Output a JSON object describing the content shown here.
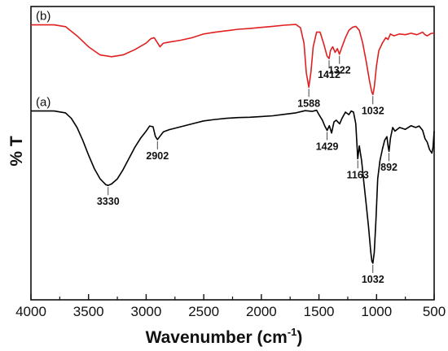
{
  "chart_data": {
    "type": "line",
    "xlabel": "Wavenumber (cm",
    "xlabel_sup": "-1",
    "xlabel_close": ")",
    "ylabel": "% T",
    "xlim": [
      4000,
      500
    ],
    "x_reversed": true,
    "x_ticks": [
      4000,
      3500,
      3000,
      2500,
      2000,
      1500,
      1000,
      500
    ],
    "y_ticks_shown": false,
    "grid": false,
    "series": [
      {
        "name": "(b)",
        "color": "#e02020",
        "points": [
          [
            4000,
            95.0
          ],
          [
            3800,
            95.0
          ],
          [
            3700,
            94.5
          ],
          [
            3600,
            92.0
          ],
          [
            3500,
            89.0
          ],
          [
            3400,
            86.8
          ],
          [
            3300,
            86.3
          ],
          [
            3200,
            86.8
          ],
          [
            3100,
            88.2
          ],
          [
            3000,
            90.0
          ],
          [
            2960,
            91.2
          ],
          [
            2930,
            91.5
          ],
          [
            2900,
            90.0
          ],
          [
            2880,
            89.0
          ],
          [
            2850,
            90.0
          ],
          [
            2800,
            90.3
          ],
          [
            2700,
            90.8
          ],
          [
            2600,
            91.5
          ],
          [
            2500,
            92.5
          ],
          [
            2400,
            93.0
          ],
          [
            2300,
            93.4
          ],
          [
            2200,
            93.8
          ],
          [
            2100,
            94.0
          ],
          [
            2000,
            94.3
          ],
          [
            1900,
            94.6
          ],
          [
            1800,
            94.9
          ],
          [
            1700,
            95.1
          ],
          [
            1660,
            94.2
          ],
          [
            1630,
            90.0
          ],
          [
            1610,
            82.0
          ],
          [
            1588,
            78.0
          ],
          [
            1570,
            82.0
          ],
          [
            1550,
            89.0
          ],
          [
            1520,
            93.0
          ],
          [
            1490,
            93.0
          ],
          [
            1460,
            90.0
          ],
          [
            1430,
            86.5
          ],
          [
            1412,
            85.8
          ],
          [
            1400,
            88.0
          ],
          [
            1380,
            89.0
          ],
          [
            1360,
            87.5
          ],
          [
            1340,
            88.5
          ],
          [
            1322,
            87.0
          ],
          [
            1300,
            89.0
          ],
          [
            1270,
            91.5
          ],
          [
            1240,
            93.5
          ],
          [
            1210,
            94.3
          ],
          [
            1180,
            94.6
          ],
          [
            1150,
            93.5
          ],
          [
            1120,
            90.0
          ],
          [
            1090,
            85.0
          ],
          [
            1060,
            79.5
          ],
          [
            1040,
            76.5
          ],
          [
            1032,
            76.0
          ],
          [
            1020,
            78.0
          ],
          [
            1000,
            84.0
          ],
          [
            980,
            88.0
          ],
          [
            950,
            90.0
          ],
          [
            920,
            91.5
          ],
          [
            900,
            91.0
          ],
          [
            880,
            92.5
          ],
          [
            850,
            92.0
          ],
          [
            800,
            92.5
          ],
          [
            750,
            92.3
          ],
          [
            700,
            92.7
          ],
          [
            650,
            92.3
          ],
          [
            600,
            93.0
          ],
          [
            580,
            92.3
          ],
          [
            560,
            92.0
          ],
          [
            530,
            92.6
          ],
          [
            500,
            92.8
          ]
        ]
      },
      {
        "name": "(a)",
        "color": "#000000",
        "points": [
          [
            4000,
            71.5
          ],
          [
            3800,
            71.5
          ],
          [
            3700,
            71.0
          ],
          [
            3650,
            69.5
          ],
          [
            3600,
            67.0
          ],
          [
            3550,
            63.5
          ],
          [
            3500,
            59.5
          ],
          [
            3450,
            55.8
          ],
          [
            3400,
            53.0
          ],
          [
            3350,
            51.4
          ],
          [
            3330,
            51.2
          ],
          [
            3300,
            51.6
          ],
          [
            3250,
            53.0
          ],
          [
            3200,
            55.5
          ],
          [
            3150,
            58.5
          ],
          [
            3100,
            61.5
          ],
          [
            3050,
            64.0
          ],
          [
            3000,
            66.0
          ],
          [
            2970,
            67.4
          ],
          [
            2940,
            67.2
          ],
          [
            2920,
            64.6
          ],
          [
            2902,
            63.7
          ],
          [
            2880,
            64.6
          ],
          [
            2850,
            65.8
          ],
          [
            2800,
            66.4
          ],
          [
            2700,
            67.2
          ],
          [
            2600,
            68.0
          ],
          [
            2500,
            68.8
          ],
          [
            2400,
            69.2
          ],
          [
            2300,
            69.5
          ],
          [
            2200,
            69.7
          ],
          [
            2100,
            69.8
          ],
          [
            2000,
            70.0
          ],
          [
            1900,
            70.2
          ],
          [
            1800,
            70.6
          ],
          [
            1700,
            71.0
          ],
          [
            1620,
            71.6
          ],
          [
            1560,
            71.4
          ],
          [
            1520,
            71.7
          ],
          [
            1500,
            70.5
          ],
          [
            1470,
            69.0
          ],
          [
            1450,
            67.5
          ],
          [
            1429,
            66.2
          ],
          [
            1410,
            67.5
          ],
          [
            1390,
            65.5
          ],
          [
            1370,
            68.5
          ],
          [
            1350,
            69.0
          ],
          [
            1320,
            68.0
          ],
          [
            1300,
            69.5
          ],
          [
            1270,
            71.2
          ],
          [
            1240,
            70.5
          ],
          [
            1220,
            71.5
          ],
          [
            1200,
            71.2
          ],
          [
            1180,
            68.0
          ],
          [
            1163,
            58.5
          ],
          [
            1150,
            62.0
          ],
          [
            1130,
            58.0
          ],
          [
            1110,
            52.0
          ],
          [
            1090,
            46.0
          ],
          [
            1070,
            40.0
          ],
          [
            1050,
            33.0
          ],
          [
            1040,
            30.5
          ],
          [
            1032,
            30.0
          ],
          [
            1020,
            33.0
          ],
          [
            1005,
            42.0
          ],
          [
            990,
            53.0
          ],
          [
            970,
            58.0
          ],
          [
            950,
            61.0
          ],
          [
            930,
            63.5
          ],
          [
            910,
            64.5
          ],
          [
            900,
            62.0
          ],
          [
            892,
            60.5
          ],
          [
            880,
            64.0
          ],
          [
            860,
            67.0
          ],
          [
            840,
            66.0
          ],
          [
            800,
            67.0
          ],
          [
            750,
            66.5
          ],
          [
            700,
            67.5
          ],
          [
            660,
            67.0
          ],
          [
            630,
            67.4
          ],
          [
            600,
            66.2
          ],
          [
            580,
            64.0
          ],
          [
            560,
            63.0
          ],
          [
            540,
            61.0
          ],
          [
            520,
            60.0
          ],
          [
            510,
            61.5
          ],
          [
            500,
            66.0
          ]
        ]
      }
    ],
    "annotations": [
      {
        "text": "1588",
        "series": "(b)",
        "x": 1588
      },
      {
        "text": "1412",
        "series": "(b)",
        "x": 1412
      },
      {
        "text": "1322",
        "series": "(b)",
        "x": 1322
      },
      {
        "text": "1032",
        "series": "(b)",
        "x": 1032
      },
      {
        "text": "3330",
        "series": "(a)",
        "x": 3330
      },
      {
        "text": "2902",
        "series": "(a)",
        "x": 2902
      },
      {
        "text": "1429",
        "series": "(a)",
        "x": 1429
      },
      {
        "text": "1163",
        "series": "(a)",
        "x": 1163
      },
      {
        "text": "892",
        "series": "(a)",
        "x": 892
      },
      {
        "text": "1032",
        "series": "(a)",
        "x": 1032
      }
    ]
  }
}
